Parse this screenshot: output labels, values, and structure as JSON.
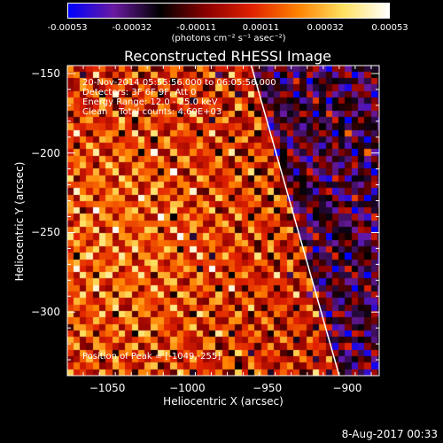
{
  "colorbar": {
    "tick_labels": [
      "-0.00053",
      "-0.00032",
      "-0.00011",
      "0.00011",
      "0.00032",
      "0.00053"
    ],
    "units": "(photons cm⁻² s⁻¹ asec⁻²)"
  },
  "chart_data": {
    "type": "heatmap",
    "title": "Reconstructed RHESSI Image",
    "xlabel": "Heliocentric X (arcsec)",
    "ylabel": "Heliocentric Y (arcsec)",
    "xlim": [
      -1075,
      -880
    ],
    "ylim": [
      -340,
      -145
    ],
    "x_ticks": [
      -1050,
      -1000,
      -950,
      -900
    ],
    "x_tick_labels": [
      "−1050",
      "−1000",
      "−950",
      "−900"
    ],
    "y_ticks": [
      -150,
      -200,
      -250,
      -300
    ],
    "y_tick_labels": [
      "−150",
      "−200",
      "−250",
      "−300"
    ],
    "value_range": [
      -0.00053,
      0.00053
    ],
    "colormap": [
      "#0000ff",
      "#6a1aa0",
      "#000000",
      "#8a0000",
      "#e02000",
      "#ff8000",
      "#ffe060",
      "#ffffff"
    ],
    "limb_line": {
      "color": "#ffffff",
      "points": [
        [
          -960,
          -145
        ],
        [
          -905,
          -340
        ]
      ]
    },
    "peak_position": [
      -1049,
      -255
    ],
    "annotations": {
      "time_range": "20-Nov-2014 05:55:56.000 to 06:05:56.000",
      "detectors": "Detectors: 3F 6F 9F, Att 0",
      "energy_range": "Energy Range: 12.0 - 25.0 keV",
      "clean_counts": "Clean    Total counts: 4.60E+03",
      "peak_text": "Position of Peak = [-1049,-255]"
    }
  },
  "footer": {
    "date": "8-Aug-2017 00:33"
  }
}
